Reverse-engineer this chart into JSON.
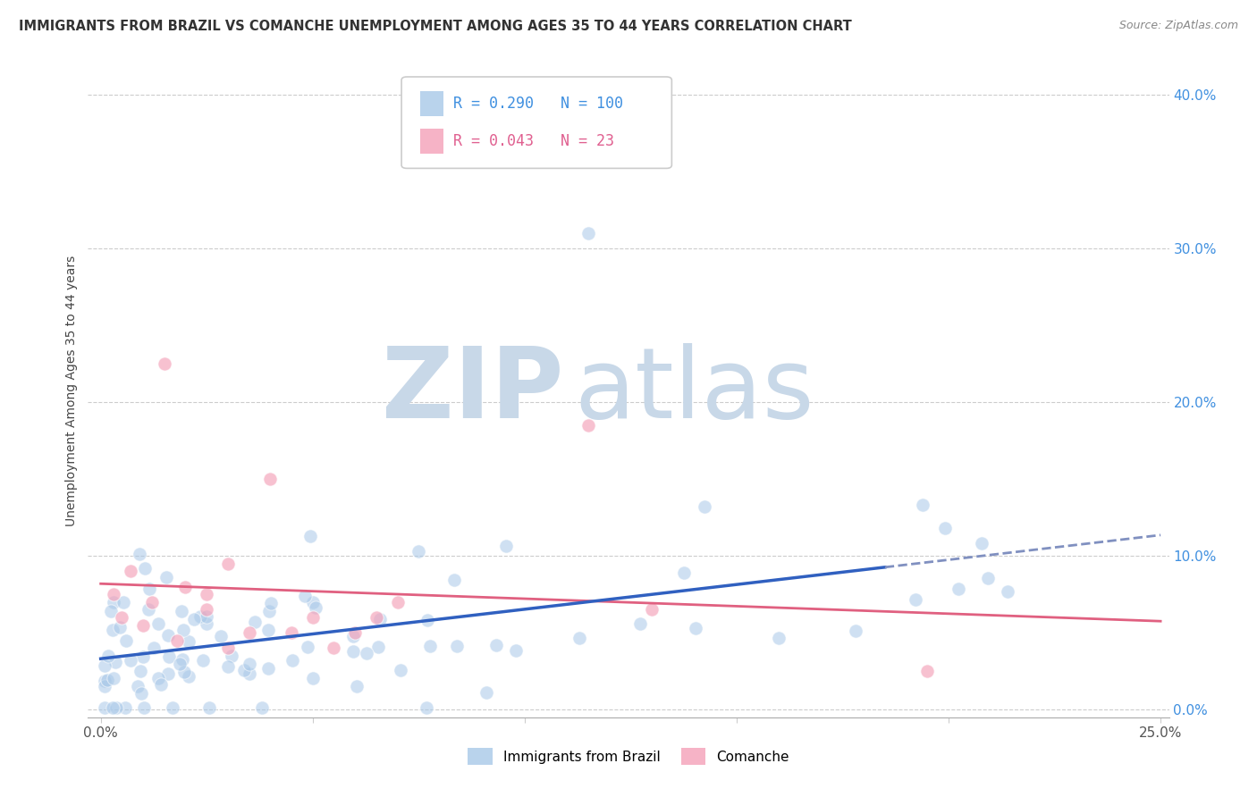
{
  "title": "IMMIGRANTS FROM BRAZIL VS COMANCHE UNEMPLOYMENT AMONG AGES 35 TO 44 YEARS CORRELATION CHART",
  "source": "Source: ZipAtlas.com",
  "ylabel": "Unemployment Among Ages 35 to 44 years",
  "xlim": [
    0.0,
    0.25
  ],
  "ylim": [
    0.0,
    0.42
  ],
  "yticks": [
    0.0,
    0.1,
    0.2,
    0.3,
    0.4
  ],
  "ytick_labels": [
    "0.0%",
    "10.0%",
    "20.0%",
    "30.0%",
    "40.0%"
  ],
  "blue_R": 0.29,
  "blue_N": 100,
  "pink_R": 0.043,
  "pink_N": 23,
  "blue_color": "#a8c8e8",
  "pink_color": "#f4a0b8",
  "blue_line_color": "#3060c0",
  "pink_line_color": "#e06080",
  "blue_line_dashed_color": "#8090c0",
  "watermark_zip": "ZIP",
  "watermark_atlas": "atlas",
  "watermark_color": "#c8d8e8",
  "legend_blue_label": "Immigrants from Brazil",
  "legend_pink_label": "Comanche",
  "blue_tick_color": "#4090e0",
  "pink_text_color": "#e06090",
  "axis_tick_color": "#555555"
}
